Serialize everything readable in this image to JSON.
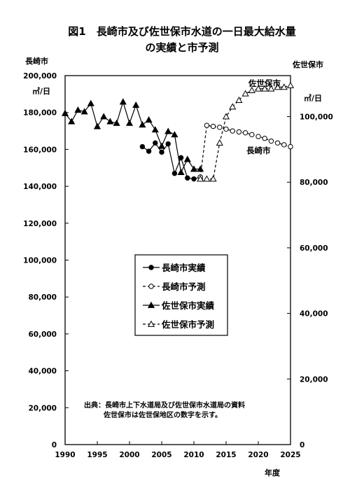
{
  "chart_data": {
    "type": "line",
    "title_line1": "図1　長崎市及び佐世保市水道の一日最大給水量",
    "title_line2": "の実績と市予測",
    "left_axis": {
      "title": "長崎市",
      "unit": "㎥/日",
      "min": 0,
      "max": 200000,
      "ticks": [
        "0",
        "20,000",
        "40,000",
        "60,000",
        "80,000",
        "100,000",
        "120,000",
        "140,000",
        "160,000",
        "180,000",
        "200,000"
      ]
    },
    "right_axis": {
      "title": "佐世保市",
      "unit": "㎥/日",
      "min": 0,
      "max": 112500,
      "ticks": [
        "0",
        "20,000",
        "40,000",
        "60,000",
        "80,000",
        "100,000"
      ],
      "tick_values": [
        0,
        20000,
        40000,
        60000,
        80000,
        100000
      ]
    },
    "x_axis": {
      "title": "年度",
      "min": 1990,
      "max": 2025,
      "ticks": [
        "1990",
        "1995",
        "2000",
        "2005",
        "2010",
        "2015",
        "2020",
        "2025"
      ],
      "tick_values": [
        1990,
        1995,
        2000,
        2005,
        2010,
        2015,
        2020,
        2025
      ]
    },
    "series": [
      {
        "name": "長崎市実績",
        "axis": "left",
        "marker": "circle-filled",
        "dashed": false,
        "x": [
          2002,
          2003,
          2004,
          2005,
          2006,
          2007,
          2008,
          2009,
          2010,
          2011
        ],
        "y": [
          161500,
          159000,
          163500,
          158500,
          163000,
          147000,
          155500,
          144500,
          144000,
          145000
        ]
      },
      {
        "name": "長崎市予測",
        "axis": "left",
        "marker": "circle-open",
        "dashed": true,
        "x": [
          2011,
          2012,
          2013,
          2014,
          2015,
          2016,
          2017,
          2018,
          2019,
          2020,
          2021,
          2022,
          2023,
          2024,
          2025
        ],
        "y": [
          145000,
          173000,
          172500,
          172000,
          171000,
          170000,
          169500,
          169000,
          168000,
          167000,
          166000,
          164500,
          163500,
          162500,
          161500
        ]
      },
      {
        "name": "佐世保市実績",
        "axis": "right",
        "marker": "triangle-filled",
        "dashed": false,
        "x": [
          1990,
          1991,
          1992,
          1993,
          1994,
          1995,
          1996,
          1997,
          1998,
          1999,
          2000,
          2001,
          2002,
          2003,
          2004,
          2005,
          2006,
          2007,
          2008,
          2009,
          2010,
          2011
        ],
        "y": [
          101000,
          98500,
          102000,
          101500,
          104000,
          97000,
          100000,
          98500,
          98000,
          104500,
          98000,
          103500,
          97500,
          99000,
          96000,
          91000,
          95500,
          94500,
          83000,
          87000,
          84000,
          84000
        ]
      },
      {
        "name": "佐世保市予測",
        "axis": "right",
        "marker": "triangle-open",
        "dashed": true,
        "x": [
          2011,
          2012,
          2013,
          2014,
          2015,
          2016,
          2017,
          2018,
          2019,
          2020,
          2021,
          2022,
          2023,
          2024,
          2025
        ],
        "y": [
          81000,
          81000,
          81000,
          92000,
          100000,
          103000,
          105000,
          107000,
          108000,
          108500,
          108500,
          108500,
          109000,
          109000,
          109500
        ]
      }
    ],
    "inline_labels": {
      "sasebo": "佐世保市",
      "nagasaki": "長崎市"
    },
    "legend": {
      "position": "center",
      "items": [
        "長崎市実績",
        "長崎市予測",
        "佐世保市実績",
        "佐世保市予測"
      ]
    },
    "notes": [
      "出典：長崎市上下水道局及び佐世保市水道局の資料",
      "佐世保市は佐世保地区の数字を示す。"
    ],
    "grid": false
  }
}
